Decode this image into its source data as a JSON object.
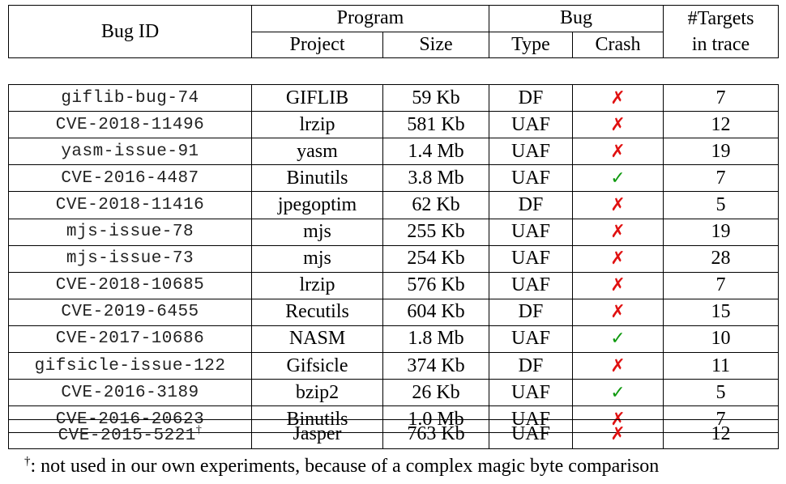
{
  "headers": {
    "bug_id": "Bug ID",
    "program": "Program",
    "bug": "Bug",
    "targets_line1": "#Targets",
    "targets_line2": "in trace",
    "project": "Project",
    "size": "Size",
    "type": "Type",
    "crash": "Crash"
  },
  "rows": [
    {
      "bug_id": "giflib-bug-74",
      "project": "GIFLIB",
      "size": "59 Kb",
      "type": "DF",
      "crash": "✗",
      "crash_value": false,
      "targets": "7"
    },
    {
      "bug_id": "CVE-2018-11496",
      "project": "lrzip",
      "size": "581 Kb",
      "type": "UAF",
      "crash": "✗",
      "crash_value": false,
      "targets": "12"
    },
    {
      "bug_id": "yasm-issue-91",
      "project": "yasm",
      "size": "1.4 Mb",
      "type": "UAF",
      "crash": "✗",
      "crash_value": false,
      "targets": "19"
    },
    {
      "bug_id": "CVE-2016-4487",
      "project": "Binutils",
      "size": "3.8 Mb",
      "type": "UAF",
      "crash": "✓",
      "crash_value": true,
      "targets": "7"
    },
    {
      "bug_id": "CVE-2018-11416",
      "project": "jpegoptim",
      "size": "62 Kb",
      "type": "DF",
      "crash": "✗",
      "crash_value": false,
      "targets": "5"
    },
    {
      "bug_id": "mjs-issue-78",
      "project": "mjs",
      "size": "255 Kb",
      "type": "UAF",
      "crash": "✗",
      "crash_value": false,
      "targets": "19"
    },
    {
      "bug_id": "mjs-issue-73",
      "project": "mjs",
      "size": "254 Kb",
      "type": "UAF",
      "crash": "✗",
      "crash_value": false,
      "targets": "28"
    },
    {
      "bug_id": "CVE-2018-10685",
      "project": "lrzip",
      "size": "576 Kb",
      "type": "UAF",
      "crash": "✗",
      "crash_value": false,
      "targets": "7"
    },
    {
      "bug_id": "CVE-2019-6455",
      "project": "Recutils",
      "size": "604 Kb",
      "type": "DF",
      "crash": "✗",
      "crash_value": false,
      "targets": "15"
    },
    {
      "bug_id": "CVE-2017-10686",
      "project": "NASM",
      "size": "1.8 Mb",
      "type": "UAF",
      "crash": "✓",
      "crash_value": true,
      "targets": "10"
    },
    {
      "bug_id": "gifsicle-issue-122",
      "project": "Gifsicle",
      "size": "374 Kb",
      "type": "DF",
      "crash": "✗",
      "crash_value": false,
      "targets": "11"
    },
    {
      "bug_id": "CVE-2016-3189",
      "project": "bzip2",
      "size": "26 Kb",
      "type": "UAF",
      "crash": "✓",
      "crash_value": true,
      "targets": "5"
    },
    {
      "bug_id": "CVE-2016-20623",
      "project": "Binutils",
      "size": "1.0 Mb",
      "type": "UAF",
      "crash": "✗",
      "crash_value": false,
      "targets": "7"
    }
  ],
  "extra_row": {
    "bug_id": "CVE-2015-5221",
    "marker": "†",
    "project": "Jasper",
    "size": "763 Kb",
    "type": "UAF",
    "crash": "✗",
    "crash_value": false,
    "targets": "12"
  },
  "footnote": {
    "marker": "†",
    "text": ": not used in our own experiments, because of a complex magic byte comparison"
  },
  "colors": {
    "cross": "#e01010",
    "check": "#109a10"
  }
}
